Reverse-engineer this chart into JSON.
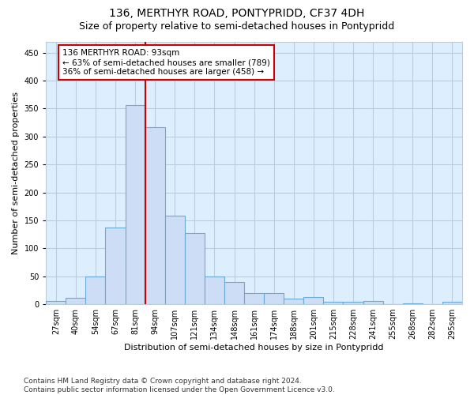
{
  "title": "136, MERTHYR ROAD, PONTYPRIDD, CF37 4DH",
  "subtitle": "Size of property relative to semi-detached houses in Pontypridd",
  "xlabel": "Distribution of semi-detached houses by size in Pontypridd",
  "ylabel": "Number of semi-detached properties",
  "categories": [
    "27sqm",
    "40sqm",
    "54sqm",
    "67sqm",
    "81sqm",
    "94sqm",
    "107sqm",
    "121sqm",
    "134sqm",
    "148sqm",
    "161sqm",
    "174sqm",
    "188sqm",
    "201sqm",
    "215sqm",
    "228sqm",
    "241sqm",
    "255sqm",
    "268sqm",
    "282sqm",
    "295sqm"
  ],
  "values": [
    6,
    11,
    50,
    137,
    356,
    317,
    158,
    127,
    50,
    39,
    20,
    20,
    10,
    13,
    5,
    4,
    6,
    0,
    1,
    0,
    4
  ],
  "bar_color": "#ccddf5",
  "bar_edge_color": "#6aaad4",
  "highlight_line_color": "#cc0000",
  "annotation_text": "136 MERTHYR ROAD: 93sqm\n← 63% of semi-detached houses are smaller (789)\n36% of semi-detached houses are larger (458) →",
  "annotation_box_color": "#ffffff",
  "annotation_box_edge_color": "#cc0000",
  "ylim": [
    0,
    470
  ],
  "yticks": [
    0,
    50,
    100,
    150,
    200,
    250,
    300,
    350,
    400,
    450
  ],
  "footer": "Contains HM Land Registry data © Crown copyright and database right 2024.\nContains public sector information licensed under the Open Government Licence v3.0.",
  "fig_bg_color": "#ffffff",
  "plot_bg_color": "#ddeeff",
  "grid_color": "#bbccdd",
  "title_fontsize": 10,
  "subtitle_fontsize": 9,
  "xlabel_fontsize": 8,
  "ylabel_fontsize": 8,
  "tick_fontsize": 7,
  "annotation_fontsize": 7.5,
  "footer_fontsize": 6.5
}
